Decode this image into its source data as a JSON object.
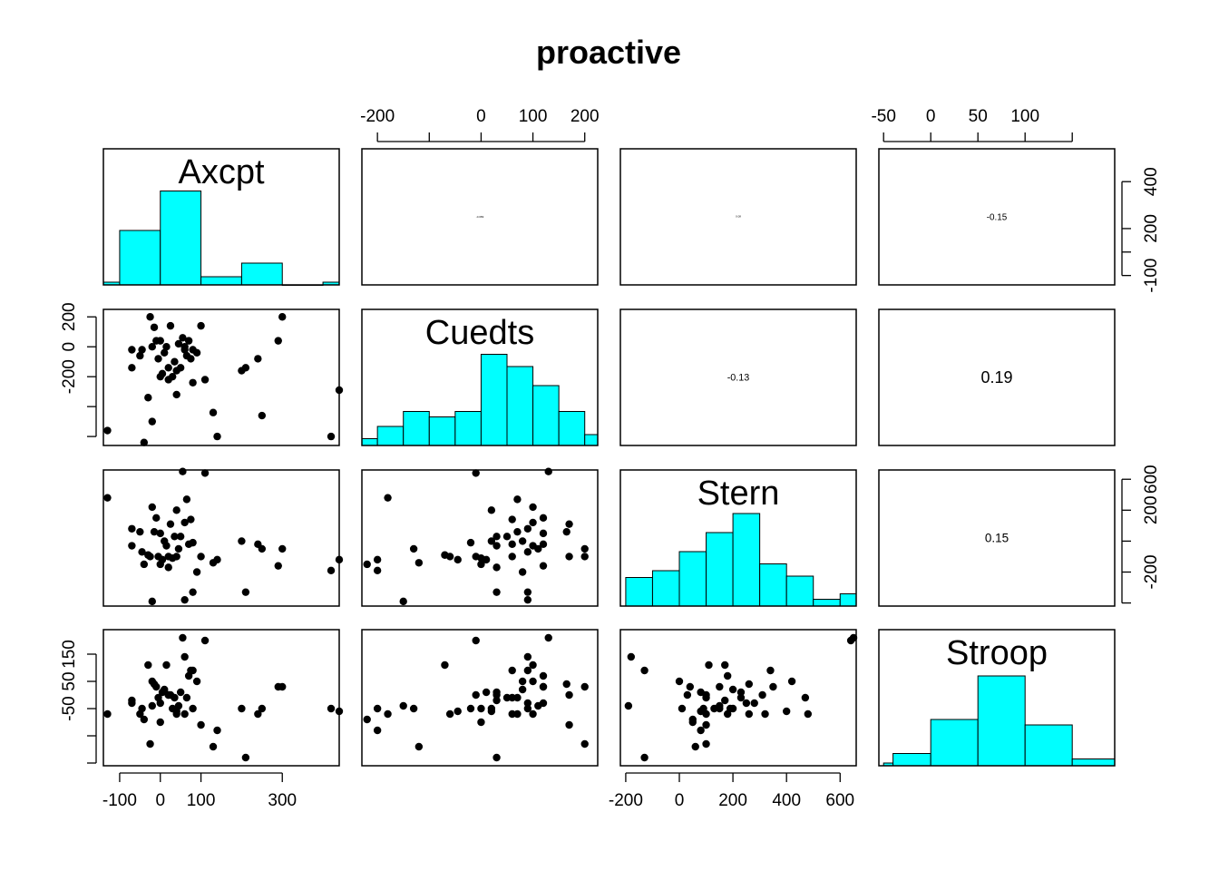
{
  "title": "proactive",
  "colors": {
    "hist_fill": "#00FFFF",
    "points": "#000000",
    "text": "#000000",
    "background": "#FFFFFF"
  },
  "chart_data": {
    "type": "scatter",
    "kind": "scatterplot-matrix",
    "title": "proactive",
    "variables": [
      "Axcpt",
      "Cuedts",
      "Stern",
      "Stroop"
    ],
    "axes": {
      "Axcpt": {
        "range": [
          -140,
          440
        ],
        "ticks": [
          -100,
          0,
          100,
          300
        ],
        "tick_labels": [
          "-100",
          "0",
          "100",
          "300"
        ]
      },
      "Cuedts": {
        "range": [
          -230,
          225
        ],
        "ticks": [
          -200,
          -100,
          0,
          100,
          200
        ],
        "tick_labels": [
          "-200",
          "",
          "0",
          "100",
          "200"
        ]
      },
      "Stern": {
        "range": [
          -220,
          660
        ],
        "ticks": [
          -200,
          0,
          200,
          400,
          600
        ],
        "tick_labels": [
          "-200",
          "0",
          "200",
          "400",
          "600"
        ]
      },
      "Stroop": {
        "range": [
          -55,
          195
        ],
        "ticks": [
          -50,
          0,
          50,
          100,
          150
        ],
        "tick_labels": [
          "-50",
          "0",
          "50",
          "100",
          "150"
        ]
      }
    },
    "axis_labels": {
      "top": [
        {
          "column": 1,
          "labels": [
            "-200",
            "",
            "0",
            "100",
            "200"
          ]
        },
        {
          "column": 3,
          "labels": [
            "-50",
            "0",
            "50",
            "100",
            ""
          ]
        }
      ],
      "left": [
        {
          "row": 1,
          "labels": [
            "200",
            "0",
            "-200"
          ]
        },
        {
          "row": 3,
          "labels": [
            "150",
            "50",
            "-50"
          ]
        }
      ],
      "bottom": [
        {
          "column": 0,
          "labels": [
            "-100",
            "0",
            "100",
            "300"
          ]
        },
        {
          "column": 2,
          "labels": [
            "-200",
            "0",
            "200",
            "400",
            "600"
          ]
        }
      ],
      "right": [
        {
          "row": 0,
          "labels": [
            "400",
            "200",
            "",
            "-100"
          ]
        },
        {
          "row": 2,
          "labels": [
            "600",
            "200",
            "",
            "-200"
          ]
        }
      ]
    },
    "correlations": [
      {
        "row": 0,
        "col": 1,
        "text": "-0.089",
        "relsize": 0.13
      },
      {
        "row": 0,
        "col": 2,
        "text": "0.08",
        "relsize": 0.11
      },
      {
        "row": 0,
        "col": 3,
        "text": "-0.15",
        "relsize": 0.55
      },
      {
        "row": 1,
        "col": 2,
        "text": "-0.13",
        "relsize": 0.6
      },
      {
        "row": 1,
        "col": 3,
        "text": "0.19",
        "relsize": 1.0
      },
      {
        "row": 2,
        "col": 3,
        "text": "0.15",
        "relsize": 0.75
      }
    ],
    "histograms": {
      "Axcpt": {
        "edges": [
          -150,
          -100,
          0,
          100,
          200,
          300,
          400,
          450
        ],
        "heights": [
          0.02,
          0.4,
          0.69,
          0.06,
          0.16,
          0,
          0.02
        ]
      },
      "Cuedts": {
        "edges": [
          -230,
          -200,
          -150,
          -100,
          -50,
          0,
          50,
          100,
          150,
          200,
          225
        ],
        "heights": [
          0.05,
          0.14,
          0.25,
          0.21,
          0.25,
          0.67,
          0.58,
          0.44,
          0.25,
          0.08
        ]
      },
      "Stern": {
        "edges": [
          -200,
          -100,
          0,
          100,
          200,
          300,
          400,
          500,
          600,
          660
        ],
        "heights": [
          0.21,
          0.26,
          0.4,
          0.54,
          0.68,
          0.31,
          0.22,
          0.05,
          0.09
        ]
      },
      "Stroop": {
        "edges": [
          -50,
          -40,
          0,
          50,
          100,
          150,
          200
        ],
        "heights": [
          0.02,
          0.09,
          0.34,
          0.66,
          0.3,
          0.05
        ]
      }
    },
    "observations": {
      "Axcpt": [
        -70,
        -50,
        -45,
        -30,
        -25,
        -20,
        -15,
        -10,
        -5,
        0,
        5,
        10,
        15,
        20,
        25,
        30,
        35,
        40,
        45,
        50,
        55,
        60,
        65,
        70,
        75,
        80,
        90,
        100,
        110,
        130,
        140,
        200,
        210,
        240,
        250,
        290,
        300,
        420,
        440,
        -130,
        -70,
        -40,
        -20,
        0,
        20,
        40,
        60,
        80
      ],
      "Cuedts": [
        90,
        70,
        90,
        -70,
        200,
        100,
        165,
        120,
        60,
        120,
        10,
        80,
        100,
        30,
        170,
        0,
        50,
        -60,
        110,
        30,
        130,
        100,
        70,
        120,
        60,
        -20,
        80,
        170,
        -10,
        -120,
        -200,
        20,
        30,
        60,
        -130,
        120,
        200,
        -200,
        -45,
        -180,
        30,
        -220,
        -150,
        0,
        -10,
        20,
        90,
        90
      ],
      "Stern": [
        280,
        260,
        130,
        110,
        100,
        420,
        260,
        350,
        100,
        250,
        80,
        200,
        170,
        30,
        310,
        90,
        230,
        100,
        150,
        230,
        650,
        320,
        470,
        180,
        340,
        190,
        0,
        100,
        640,
        60,
        80,
        200,
        -130,
        180,
        150,
        40,
        150,
        10,
        80,
        480,
        170,
        50,
        -190,
        50,
        100,
        400,
        -180,
        -130
      ],
      "Stroop": [
        60,
        40,
        50,
        130,
        -15,
        100,
        95,
        90,
        70,
        60,
        80,
        85,
        130,
        75,
        75,
        50,
        70,
        40,
        55,
        80,
        180,
        40,
        70,
        110,
        120,
        50,
        100,
        20,
        175,
        -20,
        10,
        50,
        -40,
        40,
        50,
        90,
        90,
        50,
        45,
        40,
        65,
        30,
        55,
        25,
        75,
        45,
        145,
        120
      ]
    }
  }
}
